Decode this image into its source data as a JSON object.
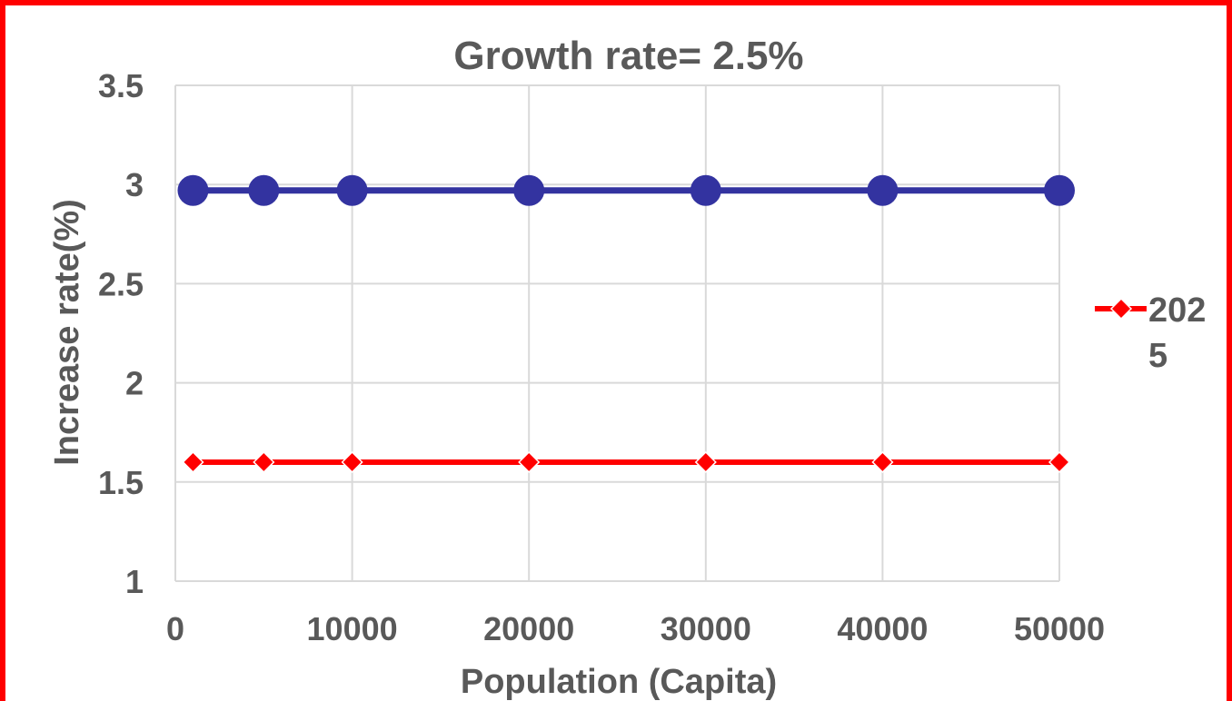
{
  "chart_data": {
    "type": "line",
    "title": "Growth rate= 2.5%",
    "xlabel": "Population (Capita)",
    "ylabel": "Increase rate(%)",
    "xlim": [
      0,
      50000
    ],
    "ylim": [
      1,
      3.5
    ],
    "x_ticks": [
      0,
      10000,
      20000,
      30000,
      40000,
      50000
    ],
    "y_ticks": [
      1,
      1.5,
      2,
      2.5,
      3,
      3.5
    ],
    "grid": true,
    "legend_position": "right",
    "x": [
      1000,
      5000,
      10000,
      20000,
      30000,
      40000,
      50000
    ],
    "series": [
      {
        "values": [
          2.97,
          2.97,
          2.97,
          2.97,
          2.97,
          2.97,
          2.97
        ],
        "color": "#3333a0",
        "marker": "circle"
      },
      {
        "name": "2025",
        "values": [
          1.6,
          1.6,
          1.6,
          1.6,
          1.6,
          1.6,
          1.6
        ],
        "color": "#ff0000",
        "marker": "diamond"
      }
    ]
  }
}
